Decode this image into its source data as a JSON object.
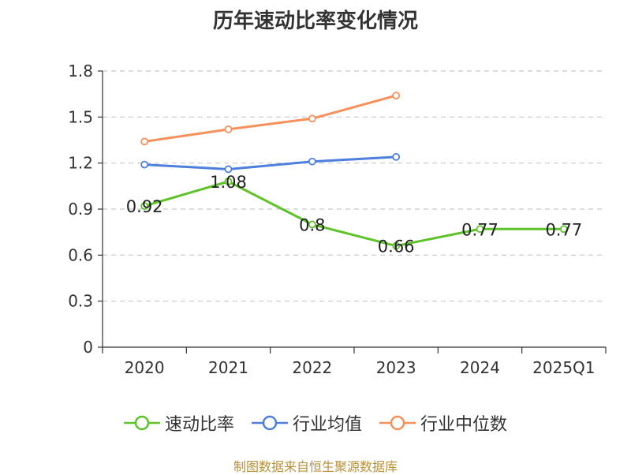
{
  "chart_data": {
    "type": "line",
    "title": "历年速动比率变化情况",
    "categories": [
      "2020",
      "2021",
      "2022",
      "2023",
      "2024",
      "2025Q1"
    ],
    "ylim": [
      0,
      1.8
    ],
    "yticks": [
      "0",
      "0.3",
      "0.6",
      "0.9",
      "1.2",
      "1.5",
      "1.8"
    ],
    "grid": true,
    "legend_position": "bottom",
    "series": [
      {
        "name": "速动比率",
        "color": "#5ec229",
        "values": [
          0.92,
          1.08,
          0.8,
          0.66,
          0.77,
          0.77
        ],
        "labels": [
          "0.92",
          "1.08",
          "0.8",
          "0.66",
          "0.77",
          "0.77"
        ]
      },
      {
        "name": "行业均值",
        "color": "#4f7fdc",
        "values": [
          1.19,
          1.16,
          1.21,
          1.24,
          null,
          null
        ]
      },
      {
        "name": "行业中位数",
        "color": "#f7905a",
        "values": [
          1.34,
          1.42,
          1.49,
          1.64,
          null,
          null
        ]
      }
    ]
  },
  "source_text": "制图数据来自恒生聚源数据库"
}
